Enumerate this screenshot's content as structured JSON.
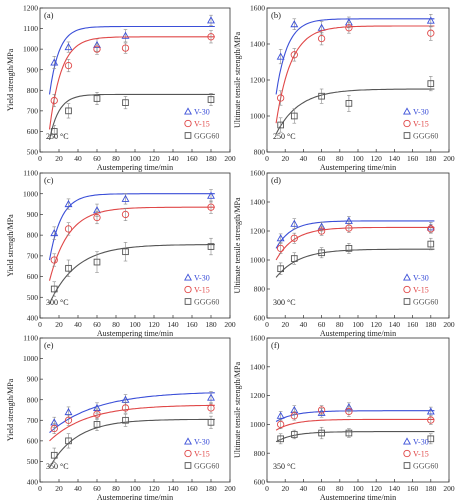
{
  "colors": {
    "V-30": "#3b4fd8",
    "V-15": "#e04848",
    "GGG60": "#555555",
    "axis": "#333333"
  },
  "chart_data": [
    {
      "panel": "(a)",
      "type": "scatter",
      "temperature": "250 °C",
      "xlabel": "Austempering time/min",
      "ylabel": "Yield strength/MPa",
      "xlim": [
        0,
        200
      ],
      "ylim": [
        500,
        1200
      ],
      "xticks": [
        0,
        20,
        40,
        60,
        80,
        100,
        120,
        140,
        160,
        180,
        200
      ],
      "yticks": [
        500,
        600,
        700,
        800,
        900,
        1000,
        1100,
        1200
      ],
      "legend_position": "bottom-right",
      "x": [
        15,
        30,
        60,
        90,
        180
      ],
      "series": [
        {
          "name": "V-30",
          "marker": "triangle",
          "values": [
            935,
            1010,
            1020,
            1065,
            1140
          ],
          "err": [
            30,
            25,
            30,
            30,
            25
          ],
          "fit": {
            "plateau": 1110,
            "y0": 780,
            "k": 0.1
          }
        },
        {
          "name": "V-15",
          "marker": "circle",
          "values": [
            750,
            920,
            1000,
            1005,
            1060
          ],
          "err": [
            30,
            30,
            25,
            25,
            30
          ],
          "fit": {
            "plateau": 1060,
            "y0": 610,
            "k": 0.08
          }
        },
        {
          "name": "GGG60",
          "marker": "square",
          "values": [
            600,
            700,
            760,
            740,
            755
          ],
          "err": [
            30,
            35,
            30,
            30,
            30
          ],
          "fit": {
            "plateau": 780,
            "y0": 560,
            "k": 0.1
          }
        }
      ]
    },
    {
      "panel": "(b)",
      "type": "scatter",
      "temperature": "250 °C",
      "xlabel": "Austempering time/min",
      "ylabel": "Ultimate tensile strength/MPa",
      "xlim": [
        0,
        200
      ],
      "ylim": [
        800,
        1600
      ],
      "xticks": [
        0,
        20,
        40,
        60,
        80,
        100,
        120,
        140,
        160,
        180,
        200
      ],
      "yticks": [
        800,
        1000,
        1200,
        1400,
        1600
      ],
      "legend_position": "bottom-right",
      "x": [
        15,
        30,
        60,
        90,
        180
      ],
      "series": [
        {
          "name": "V-30",
          "marker": "triangle",
          "values": [
            1330,
            1510,
            1490,
            1520,
            1530
          ],
          "err": [
            40,
            30,
            35,
            30,
            35
          ],
          "fit": {
            "plateau": 1540,
            "y0": 1120,
            "k": 0.08
          }
        },
        {
          "name": "V-15",
          "marker": "circle",
          "values": [
            1100,
            1340,
            1430,
            1490,
            1460
          ],
          "err": [
            40,
            35,
            35,
            30,
            40
          ],
          "fit": {
            "plateau": 1500,
            "y0": 960,
            "k": 0.06
          }
        },
        {
          "name": "GGG60",
          "marker": "square",
          "values": [
            950,
            1000,
            1110,
            1070,
            1180
          ],
          "err": [
            40,
            40,
            40,
            45,
            40
          ],
          "fit": {
            "plateau": 1150,
            "y0": 900,
            "k": 0.04
          }
        }
      ]
    },
    {
      "panel": "(c)",
      "type": "scatter",
      "temperature": "300 °C",
      "xlabel": "Austempering time/min",
      "ylabel": "Yield strength/MPa",
      "xlim": [
        0,
        200
      ],
      "ylim": [
        400,
        1100
      ],
      "xticks": [
        0,
        20,
        40,
        60,
        80,
        100,
        120,
        140,
        160,
        180,
        200
      ],
      "yticks": [
        400,
        500,
        600,
        700,
        800,
        900,
        1000,
        1100
      ],
      "legend_position": "bottom-right",
      "x": [
        15,
        30,
        60,
        90,
        180
      ],
      "series": [
        {
          "name": "V-30",
          "marker": "triangle",
          "values": [
            810,
            950,
            920,
            975,
            990
          ],
          "err": [
            30,
            25,
            30,
            25,
            30
          ],
          "fit": {
            "plateau": 1000,
            "y0": 680,
            "k": 0.08
          }
        },
        {
          "name": "V-15",
          "marker": "circle",
          "values": [
            680,
            830,
            885,
            900,
            935
          ],
          "err": [
            30,
            30,
            30,
            30,
            30
          ],
          "fit": {
            "plateau": 935,
            "y0": 580,
            "k": 0.05
          }
        },
        {
          "name": "GGG60",
          "marker": "square",
          "values": [
            540,
            640,
            670,
            720,
            745
          ],
          "err": [
            35,
            40,
            50,
            45,
            40
          ],
          "fit": {
            "plateau": 755,
            "y0": 470,
            "k": 0.035
          }
        }
      ]
    },
    {
      "panel": "(d)",
      "type": "scatter",
      "temperature": "300 °C",
      "xlabel": "Austempering time/min",
      "ylabel": "Ultimate tensile strength/MPa",
      "xlim": [
        0,
        200
      ],
      "ylim": [
        600,
        1600
      ],
      "xticks": [
        0,
        20,
        40,
        60,
        80,
        100,
        120,
        140,
        160,
        180,
        200
      ],
      "yticks": [
        600,
        800,
        1000,
        1200,
        1400,
        1600
      ],
      "legend_position": "bottom-right",
      "x": [
        15,
        30,
        60,
        90,
        180
      ],
      "series": [
        {
          "name": "V-30",
          "marker": "triangle",
          "values": [
            1150,
            1250,
            1230,
            1270,
            1225
          ],
          "err": [
            30,
            35,
            30,
            30,
            35
          ],
          "fit": {
            "plateau": 1270,
            "y0": 1080,
            "k": 0.06
          }
        },
        {
          "name": "V-15",
          "marker": "circle",
          "values": [
            1080,
            1150,
            1200,
            1220,
            1215
          ],
          "err": [
            35,
            35,
            30,
            30,
            30
          ],
          "fit": {
            "plateau": 1225,
            "y0": 1000,
            "k": 0.05
          }
        },
        {
          "name": "GGG60",
          "marker": "square",
          "values": [
            940,
            1010,
            1050,
            1080,
            1110
          ],
          "err": [
            40,
            40,
            35,
            35,
            40
          ],
          "fit": {
            "plateau": 1075,
            "y0": 880,
            "k": 0.04
          }
        }
      ]
    },
    {
      "panel": "(e)",
      "type": "scatter",
      "temperature": "350 °C",
      "xlabel": "Austempering time/min",
      "ylabel": "Yield strength/MPa",
      "xlim": [
        0,
        200
      ],
      "ylim": [
        400,
        1100
      ],
      "xticks": [
        0,
        20,
        40,
        60,
        80,
        100,
        120,
        140,
        160,
        180,
        200
      ],
      "yticks": [
        400,
        500,
        600,
        700,
        800,
        900,
        1000,
        1100
      ],
      "legend_position": "bottom-right",
      "x": [
        15,
        30,
        60,
        90,
        180
      ],
      "series": [
        {
          "name": "V-30",
          "marker": "triangle",
          "values": [
            690,
            740,
            760,
            800,
            810
          ],
          "err": [
            25,
            25,
            25,
            25,
            30
          ],
          "fit": {
            "plateau": 840,
            "y0": 640,
            "k": 0.02
          }
        },
        {
          "name": "V-15",
          "marker": "circle",
          "values": [
            660,
            700,
            730,
            760,
            760
          ],
          "err": [
            25,
            25,
            25,
            25,
            25
          ],
          "fit": {
            "plateau": 775,
            "y0": 600,
            "k": 0.025
          }
        },
        {
          "name": "GGG60",
          "marker": "square",
          "values": [
            530,
            600,
            680,
            700,
            690
          ],
          "err": [
            35,
            35,
            30,
            30,
            30
          ],
          "fit": {
            "plateau": 705,
            "y0": 470,
            "k": 0.035
          }
        }
      ]
    },
    {
      "panel": "(f)",
      "type": "scatter",
      "temperature": "350 °C",
      "xlabel": "Austempering time/min",
      "ylabel": "Ultimate tensile strength/MPa",
      "xlim": [
        0,
        200
      ],
      "ylim": [
        600,
        1600
      ],
      "xticks": [
        0,
        20,
        40,
        60,
        80,
        100,
        120,
        140,
        160,
        180,
        200
      ],
      "yticks": [
        600,
        800,
        1000,
        1200,
        1400,
        1600
      ],
      "legend_position": "bottom-right",
      "x": [
        15,
        30,
        60,
        90,
        180
      ],
      "series": [
        {
          "name": "V-30",
          "marker": "triangle",
          "values": [
            1060,
            1100,
            1080,
            1120,
            1090
          ],
          "err": [
            30,
            30,
            30,
            30,
            30
          ],
          "fit": {
            "plateau": 1095,
            "y0": 1020,
            "k": 0.05
          }
        },
        {
          "name": "V-15",
          "marker": "circle",
          "values": [
            1000,
            1060,
            1100,
            1090,
            1030
          ],
          "err": [
            30,
            30,
            30,
            35,
            30
          ],
          "fit": {
            "plateau": 1035,
            "y0": 960,
            "k": 0.05
          }
        },
        {
          "name": "GGG60",
          "marker": "square",
          "values": [
            900,
            930,
            940,
            940,
            900
          ],
          "err": [
            35,
            30,
            40,
            30,
            35
          ],
          "fit": {
            "plateau": 950,
            "y0": 880,
            "k": 0.05
          }
        }
      ]
    }
  ]
}
